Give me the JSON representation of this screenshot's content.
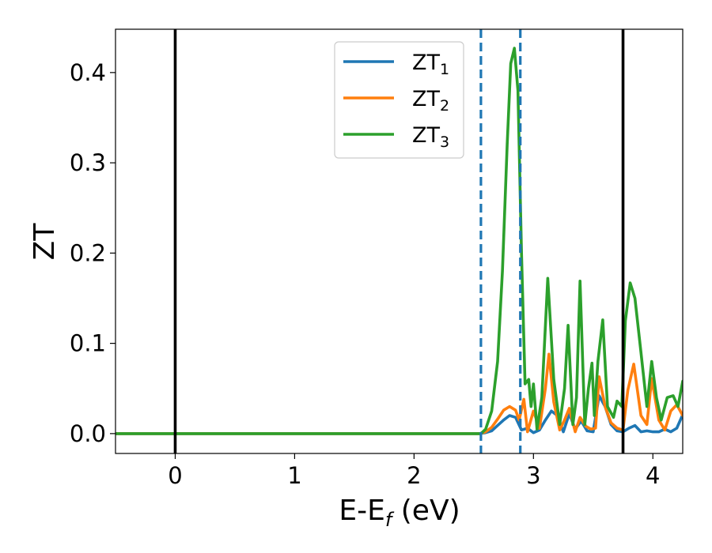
{
  "chart_data": {
    "type": "line",
    "xlabel_main": "E-E",
    "xlabel_sub": "f",
    "xlabel_unit": " (eV)",
    "ylabel": "ZT",
    "xlim": [
      -0.5,
      4.25
    ],
    "ylim": [
      -0.022,
      0.448
    ],
    "x_ticks": [
      0,
      1,
      2,
      3,
      4
    ],
    "x_tick_labels": [
      "0",
      "1",
      "2",
      "3",
      "4"
    ],
    "y_ticks": [
      0.0,
      0.1,
      0.2,
      0.3,
      0.4
    ],
    "y_tick_labels": [
      "0.0",
      "0.1",
      "0.2",
      "0.3",
      "0.4"
    ],
    "grid": false,
    "legend_position": "top-center",
    "vertical_lines": [
      {
        "x": 0.0,
        "style": "solid",
        "color": "#000000"
      },
      {
        "x": 3.75,
        "style": "solid",
        "color": "#000000"
      },
      {
        "x": 2.56,
        "style": "dashed",
        "color": "#1f77b4"
      },
      {
        "x": 2.89,
        "style": "dashed",
        "color": "#1f77b4"
      }
    ],
    "series": [
      {
        "name_main": "ZT",
        "name_sub": "1",
        "color": "#1f77b4",
        "x": [
          -0.5,
          2.55,
          2.6,
          2.65,
          2.7,
          2.75,
          2.8,
          2.85,
          2.9,
          2.95,
          3.0,
          3.05,
          3.1,
          3.15,
          3.2,
          3.25,
          3.3,
          3.35,
          3.4,
          3.45,
          3.5,
          3.55,
          3.6,
          3.65,
          3.7,
          3.75,
          3.8,
          3.85,
          3.9,
          3.95,
          4.0,
          4.05,
          4.1,
          4.15,
          4.2,
          4.25
        ],
        "y": [
          0.0,
          0.0,
          0.001,
          0.003,
          0.009,
          0.015,
          0.02,
          0.018,
          0.004,
          0.006,
          0.001,
          0.004,
          0.015,
          0.025,
          0.02,
          0.002,
          0.022,
          0.005,
          0.014,
          0.003,
          0.002,
          0.042,
          0.03,
          0.01,
          0.003,
          0.002,
          0.006,
          0.009,
          0.002,
          0.003,
          0.002,
          0.002,
          0.005,
          0.002,
          0.006,
          0.021
        ]
      },
      {
        "name_main": "ZT",
        "name_sub": "2",
        "color": "#ff7f0e",
        "x": [
          -0.5,
          2.55,
          2.6,
          2.65,
          2.7,
          2.75,
          2.8,
          2.85,
          2.88,
          2.92,
          2.95,
          3.0,
          3.05,
          3.1,
          3.13,
          3.17,
          3.22,
          3.26,
          3.3,
          3.35,
          3.39,
          3.44,
          3.48,
          3.52,
          3.55,
          3.6,
          3.65,
          3.7,
          3.75,
          3.79,
          3.84,
          3.9,
          3.95,
          3.99,
          4.05,
          4.1,
          4.15,
          4.2,
          4.25
        ],
        "y": [
          0.0,
          0.0,
          0.002,
          0.007,
          0.016,
          0.026,
          0.03,
          0.026,
          0.015,
          0.038,
          0.002,
          0.025,
          0.006,
          0.05,
          0.088,
          0.035,
          0.004,
          0.015,
          0.028,
          0.002,
          0.018,
          0.008,
          0.005,
          0.006,
          0.063,
          0.03,
          0.012,
          0.006,
          0.004,
          0.048,
          0.077,
          0.02,
          0.01,
          0.061,
          0.015,
          0.004,
          0.025,
          0.032,
          0.02
        ]
      },
      {
        "name_main": "ZT",
        "name_sub": "3",
        "color": "#2ca02c",
        "x": [
          -0.5,
          2.56,
          2.6,
          2.65,
          2.7,
          2.74,
          2.78,
          2.81,
          2.84,
          2.87,
          2.9,
          2.93,
          2.96,
          2.98,
          3.0,
          3.03,
          3.07,
          3.12,
          3.17,
          3.22,
          3.26,
          3.29,
          3.33,
          3.36,
          3.39,
          3.43,
          3.46,
          3.49,
          3.51,
          3.54,
          3.58,
          3.62,
          3.67,
          3.7,
          3.74,
          3.77,
          3.81,
          3.85,
          3.9,
          3.95,
          3.99,
          4.03,
          4.07,
          4.12,
          4.17,
          4.21,
          4.25
        ],
        "y": [
          0.0,
          0.0,
          0.005,
          0.025,
          0.08,
          0.18,
          0.32,
          0.41,
          0.427,
          0.38,
          0.2,
          0.055,
          0.06,
          0.03,
          0.055,
          0.005,
          0.04,
          0.172,
          0.06,
          0.01,
          0.05,
          0.12,
          0.01,
          0.04,
          0.169,
          0.01,
          0.05,
          0.078,
          0.02,
          0.08,
          0.126,
          0.03,
          0.018,
          0.036,
          0.03,
          0.125,
          0.167,
          0.15,
          0.09,
          0.03,
          0.08,
          0.04,
          0.015,
          0.04,
          0.042,
          0.03,
          0.058
        ]
      }
    ]
  }
}
